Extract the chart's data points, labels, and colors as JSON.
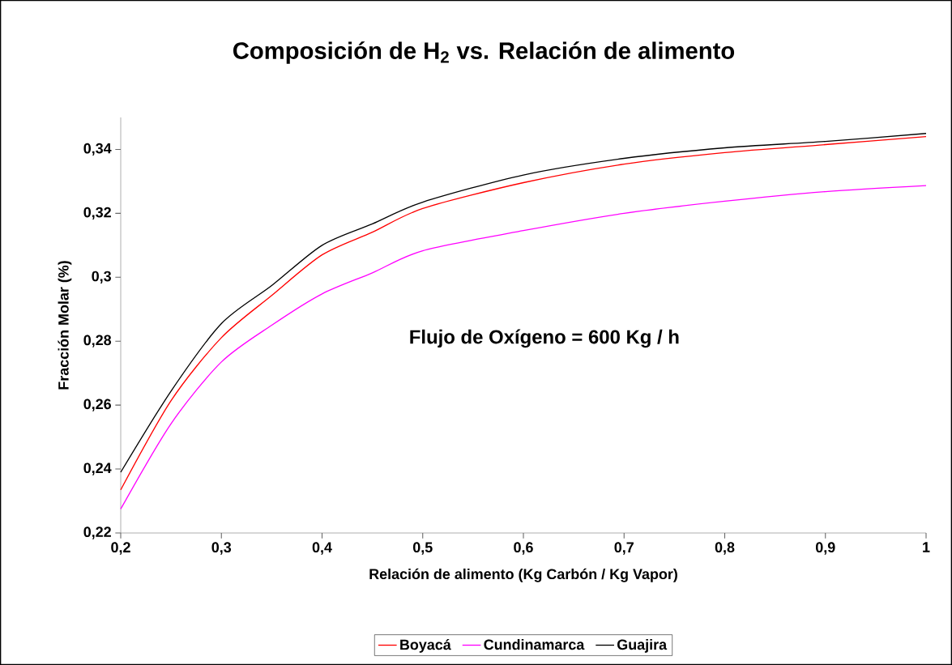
{
  "chart_data": {
    "type": "line",
    "title": "Composición de H$_{2}$ vs. Relación de alimento",
    "xlabel": "Relación de alimento (Kg Carbón / Kg Vapor)",
    "ylabel": "Fracción Molar (%)",
    "annotations": [
      "Flujo de Oxígeno = 600 Kg / h"
    ],
    "x": [
      0.2,
      0.25,
      0.3,
      0.35,
      0.4,
      0.45,
      0.5,
      0.6,
      0.7,
      0.8,
      0.9,
      1.0
    ],
    "series": [
      {
        "name": "Boyacá",
        "color": "#ff0000",
        "values": [
          0.2335,
          0.2614,
          0.2811,
          0.2943,
          0.307,
          0.3141,
          0.3215,
          0.3296,
          0.3354,
          0.339,
          0.3415,
          0.344
        ]
      },
      {
        "name": "Cundinamarca",
        "color": "#ff00ff",
        "values": [
          0.2275,
          0.2542,
          0.2735,
          0.285,
          0.2948,
          0.3014,
          0.3083,
          0.3146,
          0.32,
          0.3238,
          0.3268,
          0.3287
        ]
      },
      {
        "name": "Guajira",
        "color": "#000000",
        "values": [
          0.239,
          0.2644,
          0.2855,
          0.2974,
          0.31,
          0.3167,
          0.3235,
          0.332,
          0.3372,
          0.3405,
          0.3425,
          0.345
        ]
      }
    ],
    "xlim": [
      0.2,
      1.0
    ],
    "ylim": [
      0.22,
      0.35
    ],
    "xticks": [
      {
        "value": 0.2,
        "label": "0,2"
      },
      {
        "value": 0.3,
        "label": "0,3"
      },
      {
        "value": 0.4,
        "label": "0,4"
      },
      {
        "value": 0.5,
        "label": "0,5"
      },
      {
        "value": 0.6,
        "label": "0,6"
      },
      {
        "value": 0.7,
        "label": "0,7"
      },
      {
        "value": 0.8,
        "label": "0,8"
      },
      {
        "value": 0.9,
        "label": "0,9"
      },
      {
        "value": 1.0,
        "label": "1"
      }
    ],
    "yticks": [
      {
        "value": 0.22,
        "label": "0,22"
      },
      {
        "value": 0.24,
        "label": "0,24"
      },
      {
        "value": 0.26,
        "label": "0,26"
      },
      {
        "value": 0.28,
        "label": "0,28"
      },
      {
        "value": 0.3,
        "label": "0,3"
      },
      {
        "value": 0.32,
        "label": "0,32"
      },
      {
        "value": 0.34,
        "label": "0,34"
      }
    ],
    "grid": false,
    "legend": "bottom",
    "marker": "none",
    "line_style": "solid"
  }
}
